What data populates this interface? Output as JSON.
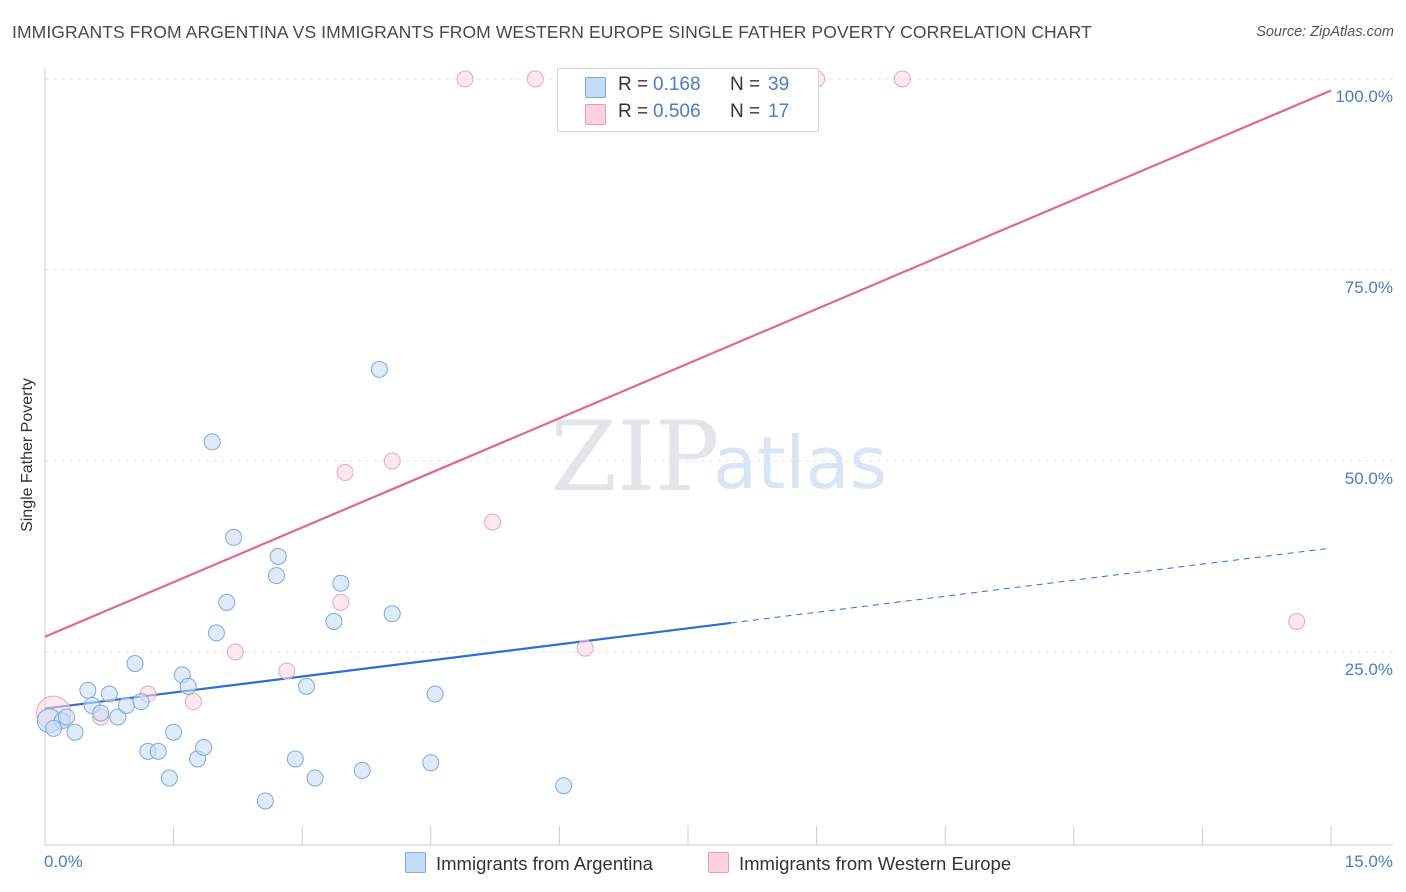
{
  "title": "IMMIGRANTS FROM ARGENTINA VS IMMIGRANTS FROM WESTERN EUROPE SINGLE FATHER POVERTY CORRELATION CHART",
  "source": "Source: ZipAtlas.com",
  "watermark": {
    "zip": "ZIP",
    "atlas": "atlas"
  },
  "colors": {
    "blue": "#a9c8f0",
    "blue_line": "#2d6fd0",
    "pink": "#f5b8cb",
    "pink_line": "#e0678f",
    "tick": "#4a7cc9"
  },
  "stats": [
    {
      "r_label": "R =",
      "r_value": "0.168",
      "n_label": "N =",
      "n_value": "39"
    },
    {
      "r_label": "R =",
      "r_value": "0.506",
      "n_label": "N =",
      "n_value": "17"
    }
  ],
  "legend": [
    "Immigrants from Argentina",
    "Immigrants from Western Europe"
  ],
  "chart_data": {
    "type": "scatter",
    "title": "IMMIGRANTS FROM ARGENTINA VS IMMIGRANTS FROM WESTERN EUROPE SINGLE FATHER POVERTY CORRELATION CHART",
    "xlabel": "",
    "ylabel": "Single Father Poverty",
    "xlim": [
      0,
      15
    ],
    "ylim": [
      0,
      100
    ],
    "x_tick_labels": [
      "0.0%",
      "15.0%"
    ],
    "y_tick_labels": [
      "25.0%",
      "50.0%",
      "75.0%",
      "100.0%"
    ],
    "y_ticks": [
      25,
      50,
      75,
      100
    ],
    "grid": true,
    "legend_position": "bottom",
    "series": [
      {
        "name": "Immigrants from Argentina",
        "color": "#a9c8f0",
        "points": [
          [
            0.05,
            16.0
          ],
          [
            0.2,
            16.0
          ],
          [
            0.25,
            16.5
          ],
          [
            0.35,
            14.5
          ],
          [
            0.5,
            20.0
          ],
          [
            0.55,
            18.0
          ],
          [
            0.65,
            17.0
          ],
          [
            0.75,
            19.5
          ],
          [
            0.85,
            16.5
          ],
          [
            0.95,
            18.0
          ],
          [
            1.05,
            23.5
          ],
          [
            1.12,
            18.5
          ],
          [
            1.2,
            12.0
          ],
          [
            1.32,
            12.0
          ],
          [
            1.45,
            8.5
          ],
          [
            1.5,
            14.5
          ],
          [
            1.6,
            22.0
          ],
          [
            1.67,
            20.5
          ],
          [
            1.78,
            11.0
          ],
          [
            1.85,
            12.5
          ],
          [
            1.95,
            52.5
          ],
          [
            2.0,
            27.5
          ],
          [
            2.12,
            31.5
          ],
          [
            2.2,
            40.0
          ],
          [
            2.57,
            5.5
          ],
          [
            2.7,
            35.0
          ],
          [
            2.72,
            37.5
          ],
          [
            2.92,
            11.0
          ],
          [
            3.05,
            20.5
          ],
          [
            3.15,
            8.5
          ],
          [
            3.37,
            29.0
          ],
          [
            3.45,
            34.0
          ],
          [
            3.7,
            9.5
          ],
          [
            3.9,
            62.0
          ],
          [
            4.05,
            30.0
          ],
          [
            4.5,
            10.5
          ],
          [
            4.55,
            19.5
          ],
          [
            6.05,
            7.5
          ],
          [
            0.1,
            15.0
          ]
        ],
        "trend_line": {
          "x": [
            0.0,
            8.0
          ],
          "y": [
            17.6,
            28.8
          ]
        },
        "trend_dashed": {
          "x": [
            8.0,
            15.0
          ],
          "y": [
            28.8,
            38.6
          ]
        }
      },
      {
        "name": "Immigrants from Western Europe",
        "color": "#f5b8cb",
        "points": [
          [
            0.1,
            17.0
          ],
          [
            0.65,
            16.5
          ],
          [
            1.2,
            19.5
          ],
          [
            1.73,
            18.5
          ],
          [
            2.22,
            25.0
          ],
          [
            2.82,
            22.5
          ],
          [
            3.45,
            31.5
          ],
          [
            3.5,
            48.5
          ],
          [
            4.05,
            50.0
          ],
          [
            4.9,
            100.0
          ],
          [
            5.22,
            42.0
          ],
          [
            5.72,
            100.0
          ],
          [
            6.3,
            25.5
          ],
          [
            7.2,
            100.0
          ],
          [
            9.0,
            100.0
          ],
          [
            10.0,
            100.0
          ],
          [
            14.6,
            29.0
          ]
        ],
        "trend_line": {
          "x": [
            0.0,
            15.0
          ],
          "y": [
            27.0,
            98.5
          ]
        }
      }
    ]
  }
}
